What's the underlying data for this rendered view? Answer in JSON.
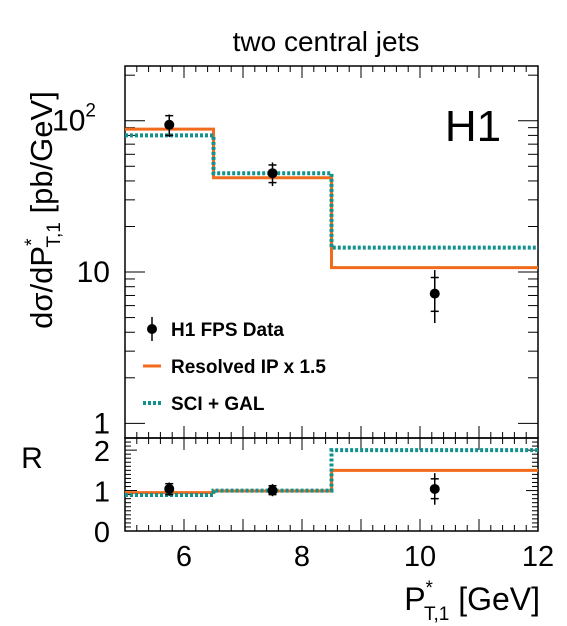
{
  "chart_data": {
    "type": "line",
    "title": "two central jets",
    "experiment_label": "H1",
    "xlabel": {
      "main": "P",
      "sup": "*",
      "sub": "T,1",
      "unit": " [GeV]"
    },
    "xlim": [
      5,
      12
    ],
    "x_ticks": [
      6,
      8,
      10,
      12
    ],
    "colors": {
      "data": "#000000",
      "resolved": "#f26b1d",
      "sci": "#13918e"
    },
    "main_panel": {
      "ylabel": {
        "pre": "dσ/dP",
        "sup": "*",
        "sub": "T,1",
        "post": " [pb/GeV]"
      },
      "yscale": "log",
      "ylim": [
        0.8,
        230
      ],
      "y_ticks": [
        {
          "value": 1,
          "label": "1"
        },
        {
          "value": 10,
          "label": "10"
        },
        {
          "value": 100,
          "label": "10",
          "exp": "2"
        }
      ],
      "series": [
        {
          "name": "H1 FPS Data",
          "style": "points",
          "x": [
            5.75,
            7.5,
            10.25
          ],
          "y": [
            94,
            45,
            7.2
          ],
          "err_stat": [
            [
              80,
              108
            ],
            [
              39,
              51
            ],
            [
              5.5,
              9.2
            ]
          ],
          "err_tot": [
            [
              78,
              110
            ],
            [
              37,
              53
            ],
            [
              4.6,
              10.3
            ]
          ]
        },
        {
          "name": "Resolved IP x 1.5",
          "style": "step",
          "edges": [
            5,
            6.5,
            8.5,
            12
          ],
          "values": [
            88,
            42,
            10.7
          ]
        },
        {
          "name": "SCI + GAL",
          "style": "step-dotted",
          "edges": [
            5,
            6.5,
            8.5,
            12
          ],
          "values": [
            80,
            45,
            14.5
          ]
        }
      ],
      "legend_position": "bottom-left"
    },
    "ratio_panel": {
      "ylabel": "R",
      "ylim": [
        0,
        2.3
      ],
      "y_ticks": [
        0,
        1,
        2
      ],
      "series": [
        {
          "name": "H1 FPS Data",
          "style": "points",
          "x": [
            5.75,
            7.5,
            10.25
          ],
          "y": [
            1.04,
            1.0,
            1.04
          ],
          "err_stat": [
            [
              0.9,
              1.17
            ],
            [
              0.9,
              1.12
            ],
            [
              0.8,
              1.29
            ]
          ],
          "err_tot": [
            [
              0.87,
              1.2
            ],
            [
              0.86,
              1.16
            ],
            [
              0.65,
              1.43
            ]
          ]
        },
        {
          "name": "Resolved IP x 1.5",
          "style": "step",
          "edges": [
            5,
            6.5,
            8.5,
            12
          ],
          "values": [
            0.95,
            0.99,
            1.5
          ]
        },
        {
          "name": "SCI + GAL",
          "style": "step-dotted",
          "edges": [
            5,
            6.5,
            8.5,
            12
          ],
          "values": [
            0.89,
            1.0,
            2.0
          ]
        }
      ]
    }
  }
}
